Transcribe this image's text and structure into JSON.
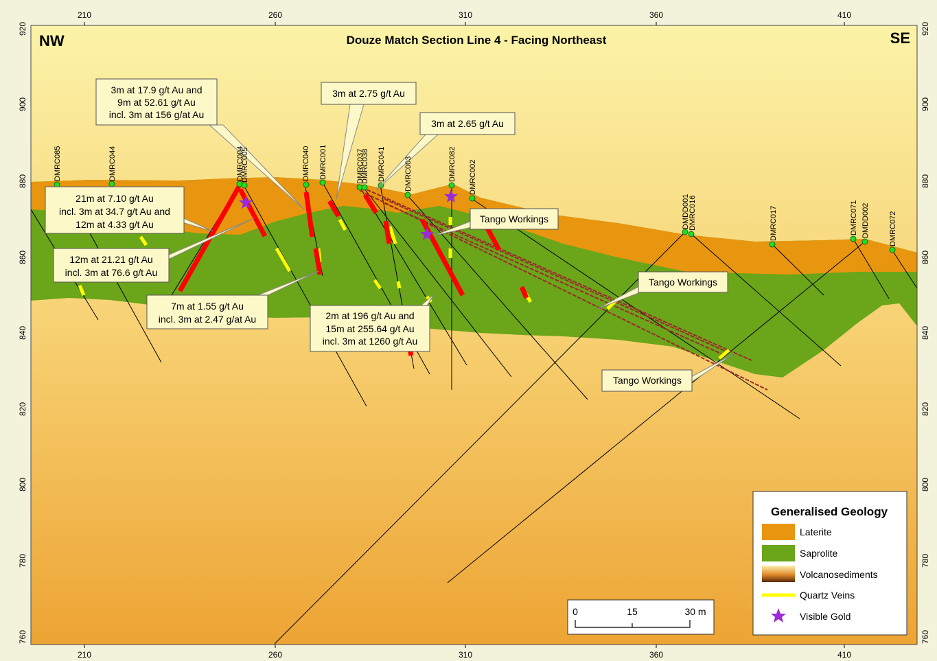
{
  "title": "Douze Match Section Line 4 - Facing Northeast",
  "corner_left": "NW",
  "corner_right": "SE",
  "x_ticks": [
    "210",
    "260",
    "310",
    "360",
    "410"
  ],
  "y_ticks": [
    "920",
    "900",
    "880",
    "860",
    "840",
    "820",
    "800",
    "780",
    "760"
  ],
  "drillholes": [
    "DMRC085",
    "DMRC044",
    "DMRC004",
    "DMRC005",
    "DMRC040",
    "DMRC001",
    "DMRC037",
    "DMRC038",
    "DMRC041",
    "DMRC003",
    "DMRC082",
    "DMRC002",
    "DMDD001",
    "DMRC016",
    "DMRC017",
    "DMRC071",
    "DMDD002",
    "DMRC072"
  ],
  "annotations": {
    "a1": [
      "3m at 17.9 g/t Au and",
      "9m at 52.61 g/t Au",
      "incl. 3m at 156 g/at Au"
    ],
    "a2": [
      "3m at 2.75 g/t Au"
    ],
    "a3": [
      "3m at 2.65 g/t Au"
    ],
    "a4": [
      "21m at 7.10 g/t Au",
      "incl. 3m at 34.7 g/t Au and",
      "12m at 4.33 g/t Au"
    ],
    "a5": [
      "12m at 21.21 g/t Au",
      "incl. 3m at 76.6 g/t Au"
    ],
    "a6": [
      "7m at 1.55 g/t Au",
      "incl. 3m at 2.47 g/at Au"
    ],
    "a7": [
      "2m at 196 g/t Au and",
      "15m at 255.64 g/t Au",
      "incl. 3m at 1260 g/t Au"
    ],
    "tango1": [
      "Tango Workings"
    ],
    "tango2": [
      "Tango Workings"
    ],
    "tango3": [
      "Tango Workings"
    ]
  },
  "legend": {
    "title": "Generalised Geology",
    "items": [
      "Laterite",
      "Saprolite",
      "Volcanosediments",
      "Quartz Veins",
      "Visible Gold"
    ]
  },
  "scalebar": {
    "ticks": [
      "0",
      "15",
      "30 m"
    ]
  },
  "colors": {
    "laterite": "#e8960f",
    "saprolite": "#6aa51a",
    "intercept": "#ff0000",
    "quartz": "#ffff00",
    "gold": "#9a2bd8",
    "collar": "#22dd22"
  }
}
